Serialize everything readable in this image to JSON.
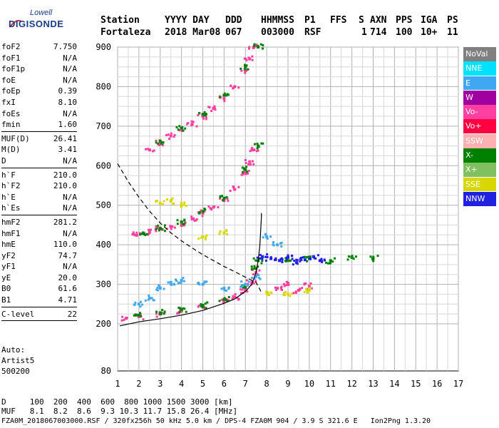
{
  "logo": {
    "line1": "Lowell",
    "line2": "DIGISONDE"
  },
  "header": {
    "labels": [
      "Station",
      "YYYY DAY",
      "DDD",
      "HHMMSS",
      "P1",
      "FFS",
      "S",
      "AXN",
      "PPS",
      "IGA",
      "PS"
    ],
    "values": [
      "Fortaleza",
      "2018 Mar08",
      "067",
      "003000",
      "RSF",
      "1",
      "714",
      "100",
      "10+",
      "11"
    ]
  },
  "params": {
    "group1": [
      {
        "k": "foF2",
        "v": "7.750"
      },
      {
        "k": "foF1",
        "v": "N/A"
      },
      {
        "k": "foF1p",
        "v": "N/A"
      },
      {
        "k": "foE",
        "v": "N/A"
      },
      {
        "k": "foEp",
        "v": "0.39"
      },
      {
        "k": "fxI",
        "v": "8.10"
      },
      {
        "k": "foEs",
        "v": "N/A"
      },
      {
        "k": "fmin",
        "v": "1.60"
      }
    ],
    "group2": [
      {
        "k": "MUF(D)",
        "v": "26.41"
      },
      {
        "k": "M(D)",
        "v": "3.41"
      },
      {
        "k": "D",
        "v": "N/A"
      }
    ],
    "group3": [
      {
        "k": "h`F",
        "v": "210.0"
      },
      {
        "k": "h`F2",
        "v": "210.0"
      },
      {
        "k": "h`E",
        "v": "N/A"
      },
      {
        "k": "h`Es",
        "v": "N/A"
      }
    ],
    "group4": [
      {
        "k": "hmF2",
        "v": "281.2"
      },
      {
        "k": "hmF1",
        "v": "N/A"
      },
      {
        "k": "hmE",
        "v": "110.0"
      },
      {
        "k": "yF2",
        "v": "74.7"
      },
      {
        "k": "yF1",
        "v": "N/A"
      },
      {
        "k": "yE",
        "v": "20.0"
      },
      {
        "k": "B0",
        "v": "61.6"
      },
      {
        "k": "B1",
        "v": "4.71"
      }
    ],
    "group5": [
      {
        "k": "C-level",
        "v": "22"
      }
    ]
  },
  "auto": {
    "line1": "Auto:",
    "line2": "Artist5",
    "line3": "500200"
  },
  "legend": [
    {
      "label": "NoVal",
      "color": "#808080"
    },
    {
      "label": "NNE",
      "color": "#00e0ff"
    },
    {
      "label": "E",
      "color": "#40a8f0"
    },
    {
      "label": "W",
      "color": "#a000a0"
    },
    {
      "label": "Vo-",
      "color": "#ff40a0"
    },
    {
      "label": "Vo+",
      "color": "#ff0040"
    },
    {
      "label": "SSW",
      "color": "#ffb0b0"
    },
    {
      "label": "X-",
      "color": "#008000"
    },
    {
      "label": "X+",
      "color": "#80c060"
    },
    {
      "label": "SSE",
      "color": "#d8d800"
    },
    {
      "label": "NNW",
      "color": "#2020e0"
    }
  ],
  "bottom": {
    "d_row": "D     100  200  400  600  800 1000 1500 3000 [km]",
    "muf_row": "MUF   8.1  8.2  8.6  9.3 10.3 11.7 15.8 26.4 [MHz]"
  },
  "footer": "FZA0M_2018067003000.RSF / 320fx256h 50 kHz 5.0 km / DPS-4 FZA0M 904 / 3.9 S 321.6 E   Ion2Png 1.3.20",
  "chart_data": {
    "type": "scatter",
    "title": "",
    "xlabel": "",
    "ylabel": "",
    "xlim": [
      1,
      17
    ],
    "ylim": [
      80,
      900
    ],
    "x_ticks": [
      1,
      2,
      3,
      4,
      5,
      6,
      7,
      8,
      9,
      10,
      11,
      12,
      13,
      14,
      15,
      16,
      17
    ],
    "y_ticks": [
      80,
      200,
      300,
      400,
      500,
      600,
      700,
      800,
      900
    ],
    "grid": true,
    "series": [
      {
        "name": "Vo-",
        "color": "#ff40a0",
        "points": [
          [
            1.4,
            214
          ],
          [
            2,
            218
          ],
          [
            3,
            225
          ],
          [
            4,
            232
          ],
          [
            5,
            242
          ],
          [
            6,
            257
          ],
          [
            6.5,
            268
          ],
          [
            7,
            285
          ],
          [
            7.3,
            305
          ],
          [
            7.5,
            330
          ],
          [
            1.9,
            424
          ],
          [
            2.5,
            432
          ],
          [
            3,
            440
          ],
          [
            3.5,
            446
          ],
          [
            4,
            455
          ],
          [
            4.5,
            465
          ],
          [
            5,
            480
          ],
          [
            5.5,
            495
          ],
          [
            6,
            512
          ],
          [
            6.5,
            540
          ],
          [
            7,
            580
          ],
          [
            7.2,
            610
          ],
          [
            7.4,
            640
          ],
          [
            2.5,
            640
          ],
          [
            3,
            658
          ],
          [
            3.5,
            675
          ],
          [
            4,
            690
          ],
          [
            4.5,
            705
          ],
          [
            5,
            725
          ],
          [
            5.5,
            745
          ],
          [
            6,
            770
          ],
          [
            6.5,
            800
          ],
          [
            7,
            840
          ],
          [
            7.2,
            870
          ],
          [
            7.4,
            900
          ],
          [
            8.5,
            290
          ],
          [
            9,
            300
          ],
          [
            9.5,
            285
          ],
          [
            10,
            295
          ]
        ]
      },
      {
        "name": "X-",
        "color": "#008000",
        "points": [
          [
            2,
            222
          ],
          [
            3,
            228
          ],
          [
            4,
            236
          ],
          [
            5,
            247
          ],
          [
            6,
            262
          ],
          [
            7,
            292
          ],
          [
            7.5,
            340
          ],
          [
            7.6,
            360
          ],
          [
            2.2,
            430
          ],
          [
            3,
            442
          ],
          [
            4,
            458
          ],
          [
            5,
            484
          ],
          [
            6,
            518
          ],
          [
            7,
            590
          ],
          [
            7.6,
            650
          ],
          [
            3,
            662
          ],
          [
            4,
            695
          ],
          [
            5,
            730
          ],
          [
            6,
            778
          ],
          [
            7,
            850
          ],
          [
            7.6,
            900
          ],
          [
            9,
            360
          ],
          [
            10,
            365
          ],
          [
            11,
            360
          ],
          [
            12,
            368
          ],
          [
            13,
            365
          ]
        ]
      },
      {
        "name": "E",
        "color": "#40a8f0",
        "points": [
          [
            2,
            250
          ],
          [
            2.5,
            265
          ],
          [
            3,
            290
          ],
          [
            3.5,
            305
          ],
          [
            4,
            310
          ],
          [
            5,
            300
          ],
          [
            6,
            290
          ],
          [
            7,
            300
          ],
          [
            7.5,
            320
          ],
          [
            8,
            420
          ],
          [
            8.5,
            400
          ]
        ]
      },
      {
        "name": "NNW",
        "color": "#2020e0",
        "points": [
          [
            7.8,
            370
          ],
          [
            8.2,
            365
          ],
          [
            8.6,
            360
          ],
          [
            9,
            368
          ],
          [
            9.4,
            355
          ],
          [
            9.8,
            362
          ],
          [
            10.2,
            370
          ],
          [
            10.5,
            360
          ]
        ]
      },
      {
        "name": "SSE",
        "color": "#d8d800",
        "points": [
          [
            3,
            505
          ],
          [
            3.5,
            510
          ],
          [
            4,
            500
          ],
          [
            5,
            420
          ],
          [
            6,
            430
          ],
          [
            8,
            280
          ],
          [
            9,
            275
          ],
          [
            10,
            285
          ]
        ]
      }
    ],
    "curves": [
      {
        "name": "true height profile",
        "style": "solid",
        "points": [
          [
            1.1,
            195
          ],
          [
            2,
            205
          ],
          [
            3,
            213
          ],
          [
            4,
            222
          ],
          [
            5,
            234
          ],
          [
            6,
            252
          ],
          [
            6.5,
            263
          ],
          [
            7,
            282
          ],
          [
            7.3,
            300
          ],
          [
            7.5,
            330
          ],
          [
            7.6,
            360
          ],
          [
            7.68,
            400
          ],
          [
            7.72,
            440
          ],
          [
            7.75,
            470
          ],
          [
            7.75,
            480
          ]
        ]
      },
      {
        "name": "model profile",
        "style": "dashed",
        "points": [
          [
            1,
            605
          ],
          [
            1.5,
            560
          ],
          [
            2,
            520
          ],
          [
            2.5,
            485
          ],
          [
            3,
            455
          ],
          [
            3.5,
            430
          ],
          [
            4,
            410
          ],
          [
            4.5,
            392
          ],
          [
            5,
            375
          ],
          [
            5.5,
            360
          ],
          [
            6,
            345
          ],
          [
            6.5,
            332
          ],
          [
            7,
            318
          ],
          [
            7.5,
            305
          ],
          [
            7.75,
            280
          ]
        ]
      }
    ]
  }
}
